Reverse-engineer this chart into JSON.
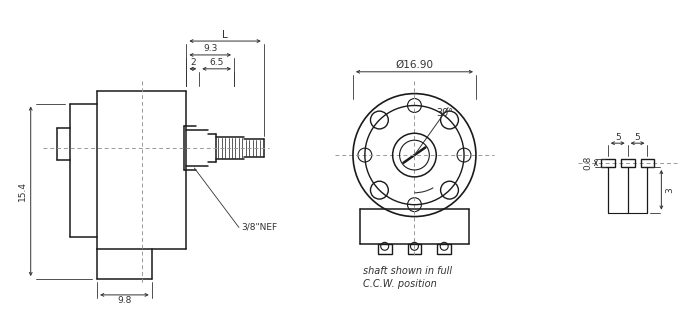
{
  "bg_color": "#ffffff",
  "line_color": "#1a1a1a",
  "dim_color": "#333333",
  "dash_color": "#999999",
  "fig_width": 7.0,
  "fig_height": 3.3,
  "dpi": 100,
  "labels": {
    "dim_93": "9.3",
    "dim_L": "L",
    "dim_2": "2",
    "dim_65": "6.5",
    "dim_154": "15.4",
    "dim_98": "9.8",
    "nef": "3/8\"NEF",
    "dia_1690": "Ø16.90",
    "dim_30": "30°",
    "shaft_text1": "shaft shown in full",
    "shaft_text2": "C.C.W. position",
    "dim_08": "0.8",
    "dim_5a": "5",
    "dim_5b": "5",
    "dim_3": "3"
  }
}
